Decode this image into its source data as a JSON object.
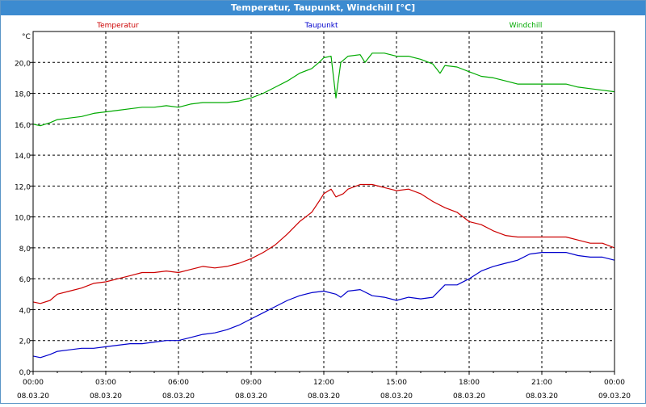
{
  "window": {
    "title": "Temperatur, Taupunkt, Windchill [°C]"
  },
  "chart_data": {
    "type": "line",
    "title": "Temperatur, Taupunkt, Windchill [°C]",
    "ylabel": "°C",
    "ylim": [
      0,
      22
    ],
    "yticks": [
      0,
      2,
      4,
      6,
      8,
      10,
      12,
      14,
      16,
      18,
      20
    ],
    "ytick_labels": [
      "0,0",
      "2,0",
      "4,0",
      "6,0",
      "8,0",
      "10,0",
      "12,0",
      "14,0",
      "16,0",
      "18,0",
      "20,0"
    ],
    "xlim": [
      0,
      24
    ],
    "xticks": [
      0,
      3,
      6,
      9,
      12,
      15,
      18,
      21,
      24
    ],
    "xtick_times": [
      "00:00",
      "03:00",
      "06:00",
      "09:00",
      "12:00",
      "15:00",
      "18:00",
      "21:00",
      "00:00"
    ],
    "xtick_dates": [
      "08.03.20",
      "08.03.20",
      "08.03.20",
      "08.03.20",
      "08.03.20",
      "08.03.20",
      "08.03.20",
      "08.03.20",
      "09.03.20"
    ],
    "grid": true,
    "legend_position": "top",
    "series": [
      {
        "name": "Temperatur",
        "color": "#cc0000",
        "points": [
          [
            0,
            4.5
          ],
          [
            0.3,
            4.4
          ],
          [
            0.7,
            4.6
          ],
          [
            1,
            5.0
          ],
          [
            1.5,
            5.2
          ],
          [
            2,
            5.4
          ],
          [
            2.5,
            5.7
          ],
          [
            3,
            5.8
          ],
          [
            3.5,
            6.0
          ],
          [
            4,
            6.2
          ],
          [
            4.5,
            6.4
          ],
          [
            5,
            6.4
          ],
          [
            5.5,
            6.5
          ],
          [
            6,
            6.4
          ],
          [
            6.5,
            6.6
          ],
          [
            7,
            6.8
          ],
          [
            7.5,
            6.7
          ],
          [
            8,
            6.8
          ],
          [
            8.5,
            7.0
          ],
          [
            9,
            7.3
          ],
          [
            9.5,
            7.7
          ],
          [
            10,
            8.2
          ],
          [
            10.5,
            8.9
          ],
          [
            11,
            9.7
          ],
          [
            11.5,
            10.3
          ],
          [
            11.8,
            11.0
          ],
          [
            12,
            11.5
          ],
          [
            12.3,
            11.8
          ],
          [
            12.5,
            11.3
          ],
          [
            12.8,
            11.5
          ],
          [
            13,
            11.8
          ],
          [
            13.5,
            12.1
          ],
          [
            14,
            12.1
          ],
          [
            14.5,
            11.9
          ],
          [
            15,
            11.7
          ],
          [
            15.5,
            11.8
          ],
          [
            16,
            11.5
          ],
          [
            16.5,
            11.0
          ],
          [
            17,
            10.6
          ],
          [
            17.5,
            10.3
          ],
          [
            18,
            9.7
          ],
          [
            18.5,
            9.5
          ],
          [
            19,
            9.1
          ],
          [
            19.5,
            8.8
          ],
          [
            20,
            8.7
          ],
          [
            21,
            8.7
          ],
          [
            22,
            8.7
          ],
          [
            22.5,
            8.5
          ],
          [
            23,
            8.3
          ],
          [
            23.5,
            8.3
          ],
          [
            24,
            8.0
          ]
        ]
      },
      {
        "name": "Taupunkt",
        "color": "#0000cc",
        "points": [
          [
            0,
            1.0
          ],
          [
            0.3,
            0.9
          ],
          [
            0.7,
            1.1
          ],
          [
            1,
            1.3
          ],
          [
            1.5,
            1.4
          ],
          [
            2,
            1.5
          ],
          [
            2.5,
            1.5
          ],
          [
            3,
            1.6
          ],
          [
            3.5,
            1.7
          ],
          [
            4,
            1.8
          ],
          [
            4.5,
            1.8
          ],
          [
            5,
            1.9
          ],
          [
            5.5,
            2.0
          ],
          [
            6,
            2.0
          ],
          [
            6.5,
            2.2
          ],
          [
            7,
            2.4
          ],
          [
            7.5,
            2.5
          ],
          [
            8,
            2.7
          ],
          [
            8.5,
            3.0
          ],
          [
            9,
            3.4
          ],
          [
            9.5,
            3.8
          ],
          [
            10,
            4.2
          ],
          [
            10.5,
            4.6
          ],
          [
            11,
            4.9
          ],
          [
            11.5,
            5.1
          ],
          [
            12,
            5.2
          ],
          [
            12.5,
            5.0
          ],
          [
            12.7,
            4.8
          ],
          [
            13,
            5.2
          ],
          [
            13.5,
            5.3
          ],
          [
            14,
            4.9
          ],
          [
            14.5,
            4.8
          ],
          [
            15,
            4.6
          ],
          [
            15.5,
            4.8
          ],
          [
            16,
            4.7
          ],
          [
            16.5,
            4.8
          ],
          [
            17,
            5.6
          ],
          [
            17.5,
            5.6
          ],
          [
            18,
            6.0
          ],
          [
            18.5,
            6.5
          ],
          [
            19,
            6.8
          ],
          [
            19.5,
            7.0
          ],
          [
            20,
            7.2
          ],
          [
            20.5,
            7.6
          ],
          [
            21,
            7.7
          ],
          [
            21.5,
            7.7
          ],
          [
            22,
            7.7
          ],
          [
            22.5,
            7.5
          ],
          [
            23,
            7.4
          ],
          [
            23.5,
            7.4
          ],
          [
            24,
            7.2
          ]
        ]
      },
      {
        "name": "Windchill",
        "color": "#00aa00",
        "points": [
          [
            0,
            16.0
          ],
          [
            0.3,
            15.9
          ],
          [
            0.7,
            16.1
          ],
          [
            1,
            16.3
          ],
          [
            1.5,
            16.4
          ],
          [
            2,
            16.5
          ],
          [
            2.5,
            16.7
          ],
          [
            3,
            16.8
          ],
          [
            3.5,
            16.9
          ],
          [
            4,
            17.0
          ],
          [
            4.5,
            17.1
          ],
          [
            5,
            17.1
          ],
          [
            5.5,
            17.2
          ],
          [
            6,
            17.1
          ],
          [
            6.5,
            17.3
          ],
          [
            7,
            17.4
          ],
          [
            7.5,
            17.4
          ],
          [
            8,
            17.4
          ],
          [
            8.5,
            17.5
          ],
          [
            9,
            17.7
          ],
          [
            9.5,
            18.0
          ],
          [
            10,
            18.4
          ],
          [
            10.5,
            18.8
          ],
          [
            11,
            19.3
          ],
          [
            11.5,
            19.6
          ],
          [
            11.8,
            20.0
          ],
          [
            12,
            20.3
          ],
          [
            12.3,
            20.4
          ],
          [
            12.5,
            17.7
          ],
          [
            12.7,
            20.0
          ],
          [
            13,
            20.4
          ],
          [
            13.5,
            20.5
          ],
          [
            13.7,
            20.0
          ],
          [
            14,
            20.6
          ],
          [
            14.5,
            20.6
          ],
          [
            15,
            20.4
          ],
          [
            15.5,
            20.4
          ],
          [
            16,
            20.2
          ],
          [
            16.5,
            19.9
          ],
          [
            16.8,
            19.3
          ],
          [
            17,
            19.8
          ],
          [
            17.5,
            19.7
          ],
          [
            18,
            19.4
          ],
          [
            18.5,
            19.1
          ],
          [
            19,
            19.0
          ],
          [
            19.5,
            18.8
          ],
          [
            20,
            18.6
          ],
          [
            21,
            18.6
          ],
          [
            22,
            18.6
          ],
          [
            22.5,
            18.4
          ],
          [
            23,
            18.3
          ],
          [
            23.5,
            18.2
          ],
          [
            24,
            18.1
          ]
        ]
      }
    ]
  }
}
